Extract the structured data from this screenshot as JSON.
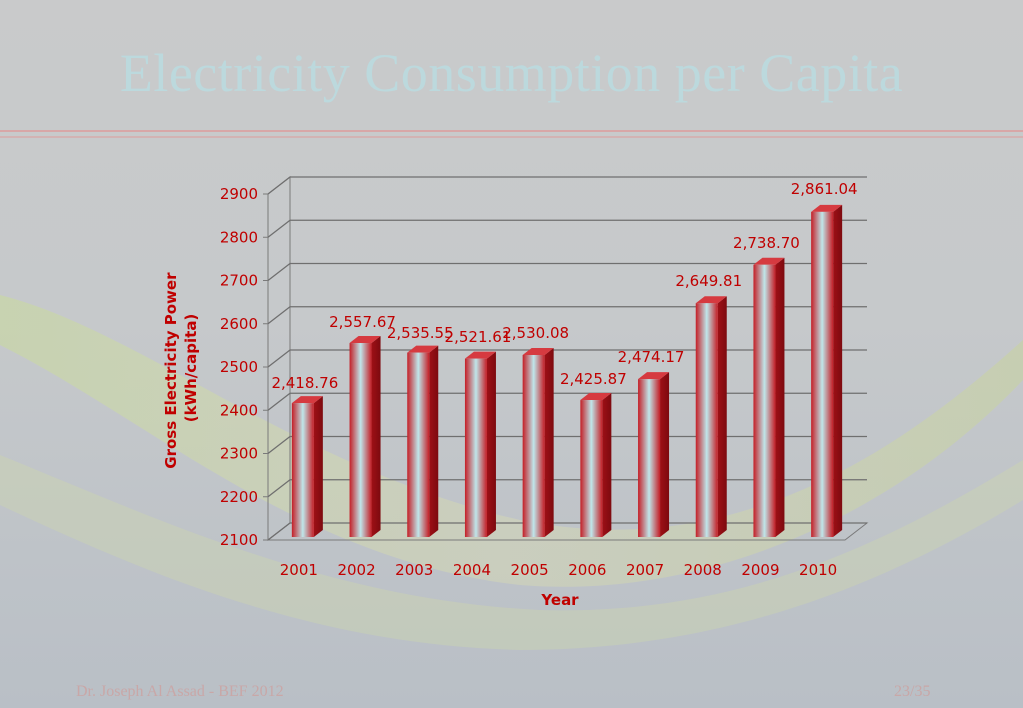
{
  "slide": {
    "title": "Electricity Consumption per Capita",
    "footer_left": "Dr. Joseph Al Assad - BEF 2012",
    "page": "23/35"
  },
  "colors": {
    "accent": "#c00000",
    "bar_dark": "#c41e26",
    "bar_light": "#bfe6ea",
    "title": "#bcd9dd"
  },
  "chart_data": {
    "type": "bar",
    "title": "",
    "xlabel": "Year",
    "ylabel": "Gross Electricity Power (kWh/capita)",
    "ylabel_lines": [
      "Gross Electricity Power",
      "(kWh/capita)"
    ],
    "categories": [
      "2001",
      "2002",
      "2003",
      "2004",
      "2005",
      "2006",
      "2007",
      "2008",
      "2009",
      "2010"
    ],
    "values": [
      2418.76,
      2557.67,
      2535.55,
      2521.61,
      2530.08,
      2425.87,
      2474.17,
      2649.81,
      2738.7,
      2861.04
    ],
    "value_labels": [
      "2,418.76",
      "2,557.67",
      "2,535.55",
      "2,521.61",
      "2,530.08",
      "2,425.87",
      "2,474.17",
      "2,649.81",
      "2,738.70",
      "2,861.04"
    ],
    "ylim": [
      2100,
      2900
    ],
    "yticks": [
      2100,
      2200,
      2300,
      2400,
      2500,
      2600,
      2700,
      2800,
      2900
    ],
    "grid": true,
    "legend": "none"
  }
}
